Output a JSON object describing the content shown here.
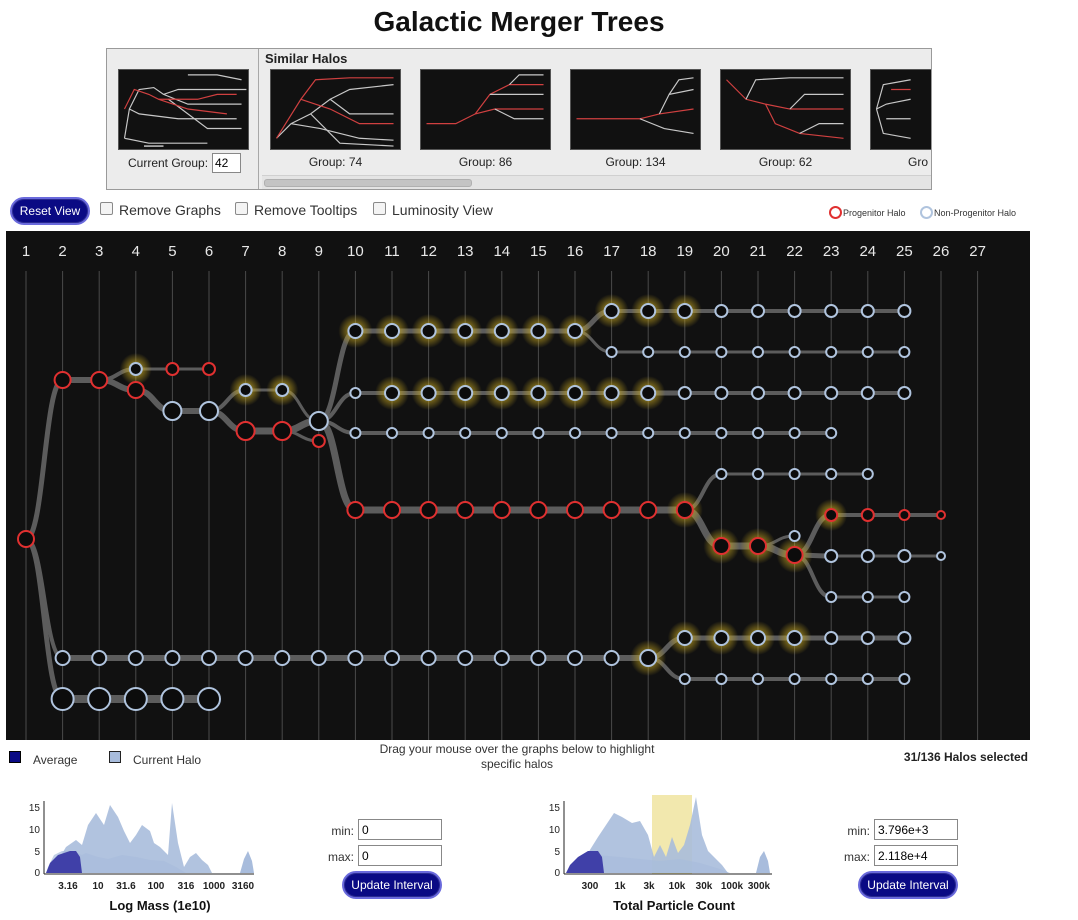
{
  "title": "Galactic Merger Trees",
  "similar": {
    "heading": "Similar Halos",
    "current_label": "Current Group:",
    "current_value": "42",
    "groups": [
      {
        "label": "Group: 74"
      },
      {
        "label": "Group: 86"
      },
      {
        "label": "Group: 134"
      },
      {
        "label": "Group: 62"
      },
      {
        "label": "Gro"
      }
    ]
  },
  "controls": {
    "reset_label": "Reset View",
    "remove_graphs": "Remove Graphs",
    "remove_tooltips": "Remove Tooltips",
    "luminosity_view": "Luminosity View"
  },
  "legend": {
    "progenitor": "Progenitor Halo",
    "non_progenitor": "Non-Progenitor Halo",
    "progenitor_color": "#e03030",
    "non_progenitor_color": "#b0c4de"
  },
  "colors": {
    "background": "#111111",
    "edge": "#5a5a5a",
    "glow": "#e8d040",
    "button": "#0a0a84",
    "average_fill": "#3030a0",
    "current_fill": "#a8bcdc"
  },
  "tree": {
    "timesteps": [
      "1",
      "2",
      "3",
      "4",
      "5",
      "6",
      "7",
      "8",
      "9",
      "10",
      "11",
      "12",
      "13",
      "14",
      "15",
      "16",
      "17",
      "18",
      "19",
      "20",
      "21",
      "22",
      "23",
      "24",
      "25",
      "26",
      "27"
    ]
  },
  "bottom": {
    "average_label": "Average",
    "current_label": "Current Halo",
    "instructions": "Drag your mouse over the graphs below to highlight specific halos",
    "selected": "31/136 Halos selected",
    "mass_title": "Log Mass (1e10)",
    "count_title": "Total Particle Count",
    "mass_min": "0",
    "mass_max": "0",
    "count_min": "3.796e+3",
    "count_max": "2.118e+4",
    "min_label": "min:",
    "max_label": "max:",
    "update_label": "Update Interval",
    "mass_yticks": [
      "15",
      "10",
      "5",
      "0"
    ],
    "mass_xticks": [
      "3.16",
      "10",
      "31.6",
      "100",
      "316",
      "1000",
      "3160"
    ],
    "count_yticks": [
      "15",
      "10",
      "5",
      "0"
    ],
    "count_xticks": [
      "300",
      "1k",
      "3k",
      "10k",
      "30k",
      "100k",
      "300k"
    ]
  }
}
